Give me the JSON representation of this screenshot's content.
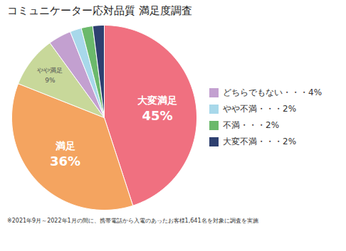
{
  "chart_data": {
    "type": "pie",
    "title": "コミュニケーター応対品質 満足度調査",
    "categories": [
      "大変満足",
      "満足",
      "やや満足",
      "どちらでもない",
      "やや不満",
      "不満",
      "大変不満"
    ],
    "values": [
      45,
      36,
      9,
      4,
      2,
      2,
      2
    ],
    "colors": [
      "#F07080",
      "#F4A460",
      "#C8D89A",
      "#C3A0D0",
      "#A8D8EA",
      "#6BB96B",
      "#2E4070"
    ],
    "data_labels": true,
    "value_labels": [
      "45%",
      "36%",
      "9%",
      null,
      null,
      null,
      null
    ],
    "legend": "right",
    "legend_entries": [
      {
        "label": "どちらでもない・・・4%",
        "color": "#C3A0D0"
      },
      {
        "label": "やや不満・・・2%",
        "color": "#A8D8EA"
      },
      {
        "label": "不満・・・2%",
        "color": "#6BB96B"
      },
      {
        "label": "大変不満・・・2%",
        "color": "#2E4070"
      }
    ],
    "note": "※2021年9月～2022年1月の間に、携帯電話から入電のあったお客様1,641名を対象に調査を実施"
  }
}
